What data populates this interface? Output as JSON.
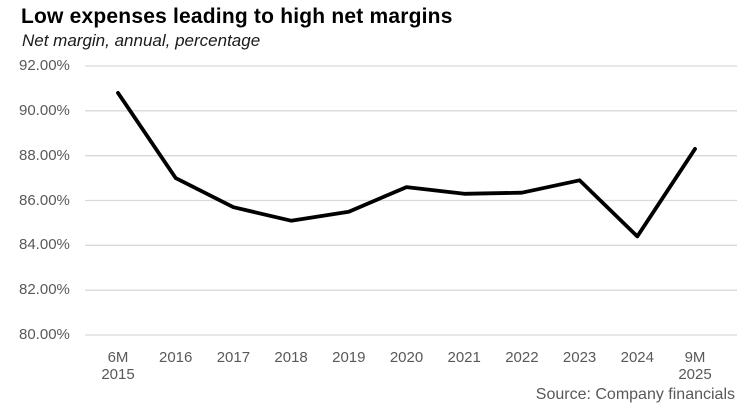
{
  "header": {
    "title": "Low expenses leading to high net margins",
    "subtitle": "Net margin, annual, percentage"
  },
  "footer": {
    "source": "Source: Company financials"
  },
  "colors": {
    "line": "#000000",
    "gridline": "#d9d9d9",
    "axis_label": "#595959",
    "title": "#000000",
    "source_text": "#595959"
  },
  "chart_data": {
    "type": "line",
    "title": "Low expenses leading to high net margins",
    "subtitle": "Net margin, annual, percentage",
    "series_name": "Net margin",
    "categories": [
      "6M\n2015",
      "2016",
      "2017",
      "2018",
      "2019",
      "2020",
      "2021",
      "2022",
      "2023",
      "2024",
      "9M\n2025"
    ],
    "values": [
      90.8,
      87.0,
      85.7,
      85.1,
      85.5,
      86.6,
      86.3,
      86.35,
      86.9,
      84.4,
      88.3
    ],
    "ylim": [
      80,
      92
    ],
    "ytick_values": [
      92,
      90,
      88,
      86,
      84,
      82,
      80
    ],
    "ytick_labels": [
      "92.00%",
      "90.00%",
      "88.00%",
      "86.00%",
      "84.00%",
      "82.00%",
      "80.00%"
    ],
    "xlabel": "",
    "ylabel": "",
    "grid": "horizontal",
    "legend": "none"
  }
}
